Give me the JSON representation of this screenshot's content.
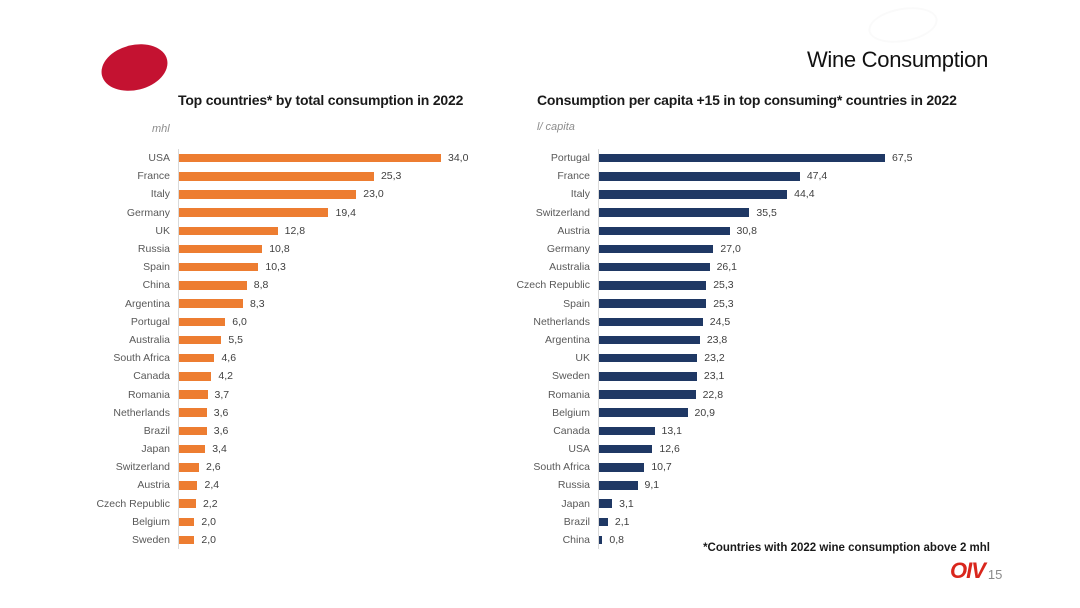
{
  "slide": {
    "title": "Wine Consumption",
    "footnote": "*Countries with 2022 wine consumption above 2 mhl",
    "logo_text": "OIV",
    "page_number": "15",
    "colors": {
      "oval_red": "#c41231",
      "logo_red": "#d9261c",
      "orange_bar": "#ed7d31",
      "navy_bar": "#1f3864"
    }
  },
  "chart_data": [
    {
      "type": "bar",
      "orientation": "horizontal",
      "title": "Top countries* by total consumption in 2022",
      "unit": "mhl",
      "color": "#ed7d31",
      "xlim": [
        0,
        34
      ],
      "grid": false,
      "legend": "none",
      "categories": [
        "USA",
        "France",
        "Italy",
        "Germany",
        "UK",
        "Russia",
        "Spain",
        "China",
        "Argentina",
        "Portugal",
        "Australia",
        "South Africa",
        "Canada",
        "Romania",
        "Netherlands",
        "Brazil",
        "Japan",
        "Switzerland",
        "Austria",
        "Czech Republic",
        "Belgium",
        "Sweden"
      ],
      "values": [
        34.0,
        25.3,
        23.0,
        19.4,
        12.8,
        10.8,
        10.3,
        8.8,
        8.3,
        6.0,
        5.5,
        4.6,
        4.2,
        3.7,
        3.6,
        3.6,
        3.4,
        2.6,
        2.4,
        2.2,
        2.0,
        2.0
      ],
      "value_labels": [
        "34,0",
        "25,3",
        "23,0",
        "19,4",
        "12,8",
        "10,8",
        "10,3",
        "8,8",
        "8,3",
        "6,0",
        "5,5",
        "4,6",
        "4,2",
        "3,7",
        "3,6",
        "3,6",
        "3,4",
        "2,6",
        "2,4",
        "2,2",
        "2,0",
        "2,0"
      ]
    },
    {
      "type": "bar",
      "orientation": "horizontal",
      "title": "Consumption per capita +15 in top consuming* countries in 2022",
      "unit": "l/ capita",
      "color": "#1f3864",
      "xlim": [
        0,
        67.5
      ],
      "grid": false,
      "legend": "none",
      "categories": [
        "Portugal",
        "France",
        "Italy",
        "Switzerland",
        "Austria",
        "Germany",
        "Australia",
        "Czech Republic",
        "Spain",
        "Netherlands",
        "Argentina",
        "UK",
        "Sweden",
        "Romania",
        "Belgium",
        "Canada",
        "USA",
        "South Africa",
        "Russia",
        "Japan",
        "Brazil",
        "China"
      ],
      "values": [
        67.5,
        47.4,
        44.4,
        35.5,
        30.8,
        27.0,
        26.1,
        25.3,
        25.3,
        24.5,
        23.8,
        23.2,
        23.1,
        22.8,
        20.9,
        13.1,
        12.6,
        10.7,
        9.1,
        3.1,
        2.1,
        0.8
      ],
      "value_labels": [
        "67,5",
        "47,4",
        "44,4",
        "35,5",
        "30,8",
        "27,0",
        "26,1",
        "25,3",
        "25,3",
        "24,5",
        "23,8",
        "23,2",
        "23,1",
        "22,8",
        "20,9",
        "13,1",
        "12,6",
        "10,7",
        "9,1",
        "3,1",
        "2,1",
        "0,8"
      ]
    }
  ]
}
